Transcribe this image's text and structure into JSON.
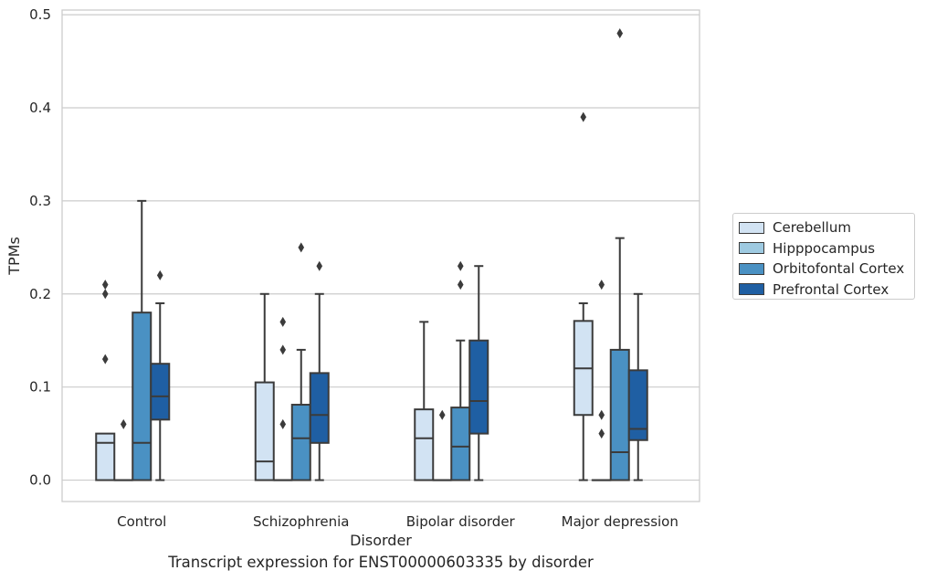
{
  "chart_data": {
    "type": "box",
    "title": "",
    "caption": "Transcript expression for ENST00000603335 by disorder",
    "xlabel": "Disorder",
    "ylabel": "TPMs",
    "ylim": [
      -0.023,
      0.505
    ],
    "yticks": [
      "0.0",
      "0.1",
      "0.2",
      "0.3",
      "0.4",
      "0.5"
    ],
    "grid": true,
    "legend_position": "right",
    "categories": [
      "Control",
      "Schizophrenia",
      "Bipolar disorder",
      "Major depression"
    ],
    "series": [
      {
        "name": "Cerebellum",
        "color": "#d2e3f3",
        "boxes": [
          {
            "q1": 0.0,
            "median": 0.04,
            "q3": 0.05,
            "whisker_low": 0.0,
            "whisker_high": 0.05,
            "outliers": [
              0.13,
              0.2,
              0.21
            ]
          },
          {
            "q1": 0.0,
            "median": 0.02,
            "q3": 0.105,
            "whisker_low": 0.0,
            "whisker_high": 0.2,
            "outliers": []
          },
          {
            "q1": 0.0,
            "median": 0.045,
            "q3": 0.076,
            "whisker_low": 0.0,
            "whisker_high": 0.17,
            "outliers": []
          },
          {
            "q1": 0.07,
            "median": 0.12,
            "q3": 0.171,
            "whisker_low": 0.0,
            "whisker_high": 0.19,
            "outliers": [
              0.39
            ]
          }
        ]
      },
      {
        "name": "Hipppocampus",
        "color": "#9ecae1",
        "boxes": [
          {
            "q1": 0.0,
            "median": 0.0,
            "q3": 0.0,
            "whisker_low": 0.0,
            "whisker_high": 0.0,
            "outliers": [
              0.06
            ]
          },
          {
            "q1": 0.0,
            "median": 0.0,
            "q3": 0.0,
            "whisker_low": 0.0,
            "whisker_high": 0.0,
            "outliers": [
              0.06,
              0.14,
              0.17
            ]
          },
          {
            "q1": 0.0,
            "median": 0.0,
            "q3": 0.0,
            "whisker_low": 0.0,
            "whisker_high": 0.0,
            "outliers": [
              0.07
            ]
          },
          {
            "q1": 0.0,
            "median": 0.0,
            "q3": 0.0,
            "whisker_low": 0.0,
            "whisker_high": 0.0,
            "outliers": [
              0.05,
              0.07,
              0.21
            ]
          }
        ]
      },
      {
        "name": "Orbitofontal Cortex",
        "color": "#4a91c3",
        "boxes": [
          {
            "q1": 0.0,
            "median": 0.04,
            "q3": 0.18,
            "whisker_low": 0.0,
            "whisker_high": 0.3,
            "outliers": []
          },
          {
            "q1": 0.0,
            "median": 0.045,
            "q3": 0.081,
            "whisker_low": 0.0,
            "whisker_high": 0.14,
            "outliers": [
              0.25
            ]
          },
          {
            "q1": 0.0,
            "median": 0.036,
            "q3": 0.078,
            "whisker_low": 0.0,
            "whisker_high": 0.15,
            "outliers": [
              0.21,
              0.23
            ]
          },
          {
            "q1": 0.0,
            "median": 0.03,
            "q3": 0.14,
            "whisker_low": 0.0,
            "whisker_high": 0.26,
            "outliers": [
              0.48
            ]
          }
        ]
      },
      {
        "name": "Prefrontal Cortex",
        "color": "#1f5fa3",
        "boxes": [
          {
            "q1": 0.065,
            "median": 0.09,
            "q3": 0.125,
            "whisker_low": 0.0,
            "whisker_high": 0.19,
            "outliers": [
              0.22
            ]
          },
          {
            "q1": 0.04,
            "median": 0.07,
            "q3": 0.115,
            "whisker_low": 0.0,
            "whisker_high": 0.2,
            "outliers": [
              0.23
            ]
          },
          {
            "q1": 0.05,
            "median": 0.085,
            "q3": 0.15,
            "whisker_low": 0.0,
            "whisker_high": 0.23,
            "outliers": []
          },
          {
            "q1": 0.043,
            "median": 0.055,
            "q3": 0.118,
            "whisker_low": 0.0,
            "whisker_high": 0.2,
            "outliers": []
          }
        ]
      }
    ]
  }
}
